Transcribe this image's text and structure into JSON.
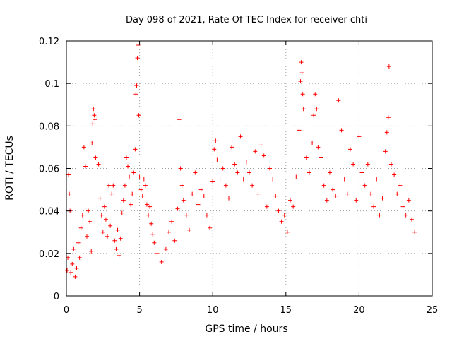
{
  "chart_data": {
    "type": "scatter",
    "title": "Day 098 of 2021, Rate Of TEC Index for receiver chti",
    "xlabel": "GPS time / hours",
    "ylabel": "ROTI / TECUs",
    "xlim": [
      0,
      25
    ],
    "ylim": [
      0,
      0.12
    ],
    "xticks": [
      0,
      5,
      10,
      15,
      20,
      25
    ],
    "yticks": [
      0,
      0.02,
      0.04,
      0.06,
      0.08,
      0.1,
      0.12
    ],
    "xtick_labels": [
      "0",
      "5",
      "10",
      "15",
      "20",
      "25"
    ],
    "ytick_labels": [
      "0",
      "0.02",
      "0.04",
      "0.06",
      "0.08",
      "0.1",
      "0.12"
    ],
    "grid": true,
    "marker": "+",
    "marker_color": "#ff0000",
    "series": [
      {
        "points": [
          [
            0.05,
            0.012
          ],
          [
            0.1,
            0.018
          ],
          [
            0.15,
            0.057
          ],
          [
            0.2,
            0.048
          ],
          [
            0.25,
            0.04
          ],
          [
            0.3,
            0.011
          ],
          [
            0.4,
            0.015
          ],
          [
            0.5,
            0.022
          ],
          [
            0.6,
            0.009
          ],
          [
            0.7,
            0.013
          ],
          [
            0.8,
            0.025
          ],
          [
            0.9,
            0.018
          ],
          [
            1.0,
            0.032
          ],
          [
            1.1,
            0.038
          ],
          [
            1.2,
            0.07
          ],
          [
            1.3,
            0.061
          ],
          [
            1.4,
            0.028
          ],
          [
            1.5,
            0.04
          ],
          [
            1.6,
            0.035
          ],
          [
            1.7,
            0.021
          ],
          [
            1.75,
            0.072
          ],
          [
            1.8,
            0.081
          ],
          [
            1.85,
            0.088
          ],
          [
            1.9,
            0.085
          ],
          [
            1.95,
            0.083
          ],
          [
            2.0,
            0.065
          ],
          [
            2.1,
            0.055
          ],
          [
            2.2,
            0.062
          ],
          [
            2.3,
            0.046
          ],
          [
            2.4,
            0.038
          ],
          [
            2.5,
            0.03
          ],
          [
            2.6,
            0.042
          ],
          [
            2.7,
            0.036
          ],
          [
            2.8,
            0.028
          ],
          [
            2.9,
            0.052
          ],
          [
            3.0,
            0.033
          ],
          [
            3.1,
            0.048
          ],
          [
            3.2,
            0.052
          ],
          [
            3.3,
            0.026
          ],
          [
            3.4,
            0.022
          ],
          [
            3.5,
            0.031
          ],
          [
            3.6,
            0.019
          ],
          [
            3.7,
            0.027
          ],
          [
            3.8,
            0.039
          ],
          [
            3.9,
            0.045
          ],
          [
            4.0,
            0.052
          ],
          [
            4.1,
            0.065
          ],
          [
            4.2,
            0.061
          ],
          [
            4.3,
            0.056
          ],
          [
            4.4,
            0.043
          ],
          [
            4.5,
            0.048
          ],
          [
            4.6,
            0.058
          ],
          [
            4.7,
            0.069
          ],
          [
            4.75,
            0.095
          ],
          [
            4.8,
            0.099
          ],
          [
            4.85,
            0.112
          ],
          [
            4.9,
            0.118
          ],
          [
            4.95,
            0.085
          ],
          [
            5.0,
            0.056
          ],
          [
            5.1,
            0.05
          ],
          [
            5.2,
            0.047
          ],
          [
            5.3,
            0.055
          ],
          [
            5.4,
            0.052
          ],
          [
            5.5,
            0.043
          ],
          [
            5.6,
            0.038
          ],
          [
            5.7,
            0.042
          ],
          [
            5.8,
            0.034
          ],
          [
            5.9,
            0.029
          ],
          [
            6.0,
            0.025
          ],
          [
            6.2,
            0.02
          ],
          [
            6.5,
            0.016
          ],
          [
            6.8,
            0.022
          ],
          [
            7.0,
            0.03
          ],
          [
            7.2,
            0.035
          ],
          [
            7.4,
            0.026
          ],
          [
            7.6,
            0.041
          ],
          [
            7.7,
            0.083
          ],
          [
            7.8,
            0.06
          ],
          [
            7.9,
            0.052
          ],
          [
            8.0,
            0.045
          ],
          [
            8.2,
            0.038
          ],
          [
            8.4,
            0.031
          ],
          [
            8.6,
            0.048
          ],
          [
            8.8,
            0.058
          ],
          [
            9.0,
            0.043
          ],
          [
            9.2,
            0.05
          ],
          [
            9.4,
            0.047
          ],
          [
            9.6,
            0.038
          ],
          [
            9.8,
            0.032
          ],
          [
            10.0,
            0.054
          ],
          [
            10.1,
            0.069
          ],
          [
            10.2,
            0.073
          ],
          [
            10.3,
            0.064
          ],
          [
            10.5,
            0.055
          ],
          [
            10.7,
            0.06
          ],
          [
            10.9,
            0.052
          ],
          [
            11.1,
            0.046
          ],
          [
            11.3,
            0.07
          ],
          [
            11.5,
            0.062
          ],
          [
            11.7,
            0.058
          ],
          [
            11.9,
            0.075
          ],
          [
            12.1,
            0.055
          ],
          [
            12.3,
            0.063
          ],
          [
            12.5,
            0.058
          ],
          [
            12.7,
            0.052
          ],
          [
            12.9,
            0.068
          ],
          [
            13.1,
            0.048
          ],
          [
            13.3,
            0.071
          ],
          [
            13.5,
            0.066
          ],
          [
            13.7,
            0.042
          ],
          [
            13.9,
            0.06
          ],
          [
            14.1,
            0.055
          ],
          [
            14.3,
            0.047
          ],
          [
            14.5,
            0.04
          ],
          [
            14.7,
            0.035
          ],
          [
            14.9,
            0.038
          ],
          [
            15.1,
            0.03
          ],
          [
            15.3,
            0.045
          ],
          [
            15.5,
            0.042
          ],
          [
            15.7,
            0.056
          ],
          [
            15.9,
            0.078
          ],
          [
            16.0,
            0.101
          ],
          [
            16.05,
            0.11
          ],
          [
            16.1,
            0.105
          ],
          [
            16.15,
            0.095
          ],
          [
            16.2,
            0.088
          ],
          [
            16.4,
            0.065
          ],
          [
            16.6,
            0.058
          ],
          [
            16.8,
            0.072
          ],
          [
            16.9,
            0.085
          ],
          [
            17.0,
            0.095
          ],
          [
            17.1,
            0.088
          ],
          [
            17.2,
            0.07
          ],
          [
            17.4,
            0.065
          ],
          [
            17.6,
            0.052
          ],
          [
            17.8,
            0.045
          ],
          [
            18.0,
            0.058
          ],
          [
            18.2,
            0.05
          ],
          [
            18.4,
            0.047
          ],
          [
            18.6,
            0.092
          ],
          [
            18.8,
            0.078
          ],
          [
            19.0,
            0.055
          ],
          [
            19.2,
            0.048
          ],
          [
            19.4,
            0.069
          ],
          [
            19.6,
            0.062
          ],
          [
            19.8,
            0.045
          ],
          [
            20.0,
            0.075
          ],
          [
            20.2,
            0.058
          ],
          [
            20.4,
            0.052
          ],
          [
            20.6,
            0.062
          ],
          [
            20.8,
            0.048
          ],
          [
            21.0,
            0.042
          ],
          [
            21.2,
            0.055
          ],
          [
            21.4,
            0.038
          ],
          [
            21.6,
            0.046
          ],
          [
            21.8,
            0.068
          ],
          [
            21.9,
            0.077
          ],
          [
            22.0,
            0.084
          ],
          [
            22.05,
            0.108
          ],
          [
            22.2,
            0.062
          ],
          [
            22.4,
            0.057
          ],
          [
            22.6,
            0.048
          ],
          [
            22.8,
            0.052
          ],
          [
            23.0,
            0.042
          ],
          [
            23.2,
            0.038
          ],
          [
            23.4,
            0.045
          ],
          [
            23.6,
            0.036
          ],
          [
            23.8,
            0.03
          ]
        ]
      }
    ]
  }
}
